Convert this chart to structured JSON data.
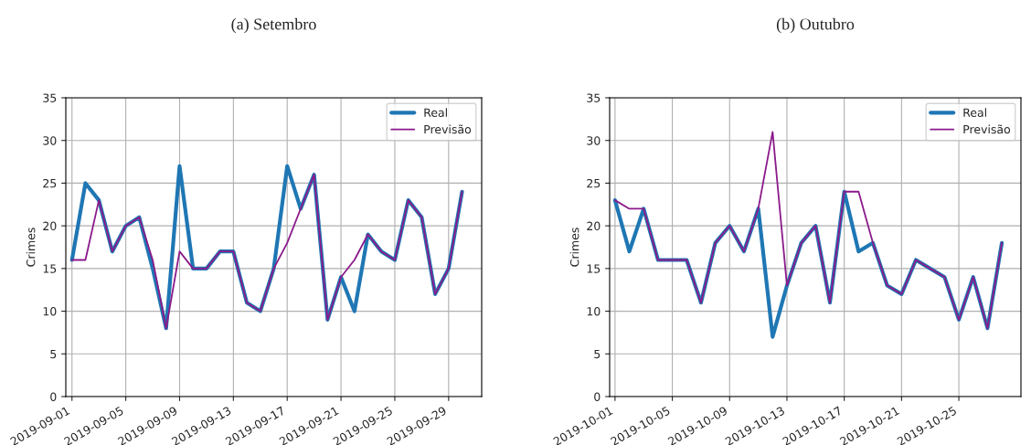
{
  "chart_data": [
    {
      "type": "line",
      "title": "(a) Setembro",
      "ylabel": "Crimes",
      "x": [
        "2019-09-01",
        "2019-09-02",
        "2019-09-03",
        "2019-09-04",
        "2019-09-05",
        "2019-09-06",
        "2019-09-07",
        "2019-09-08",
        "2019-09-09",
        "2019-09-10",
        "2019-09-11",
        "2019-09-12",
        "2019-09-13",
        "2019-09-14",
        "2019-09-15",
        "2019-09-16",
        "2019-09-17",
        "2019-09-18",
        "2019-09-19",
        "2019-09-20",
        "2019-09-21",
        "2019-09-22",
        "2019-09-23",
        "2019-09-24",
        "2019-09-25",
        "2019-09-26",
        "2019-09-27",
        "2019-09-28",
        "2019-09-29",
        "2019-09-30"
      ],
      "series": [
        {
          "name": "Real",
          "color": "#1f77b4",
          "values": [
            16,
            25,
            23,
            17,
            20,
            21,
            15,
            8,
            27,
            15,
            15,
            17,
            17,
            11,
            10,
            15,
            27,
            22,
            26,
            9,
            14,
            10,
            19,
            17,
            16,
            23,
            21,
            12,
            15,
            24
          ]
        },
        {
          "name": "Previsão",
          "color": "#8b1a8b",
          "values": [
            16,
            16,
            23,
            17,
            20,
            21,
            16,
            8,
            17,
            15,
            15,
            17,
            17,
            11,
            10,
            15,
            18,
            22,
            26,
            9,
            14,
            16,
            19,
            17,
            16,
            23,
            21,
            12,
            15,
            24
          ]
        }
      ],
      "xlim": [
        "2019-08-31T13:00",
        "2019-10-01T11:00"
      ],
      "xticks": [
        "2019-09-01",
        "2019-09-05",
        "2019-09-09",
        "2019-09-13",
        "2019-09-17",
        "2019-09-21",
        "2019-09-25",
        "2019-09-29"
      ],
      "ylim": [
        0,
        35
      ],
      "yticks": [
        0,
        5,
        10,
        15,
        20,
        25,
        30,
        35
      ],
      "grid": true,
      "legend": "top right",
      "line_style": "solid",
      "marker": "none"
    },
    {
      "type": "line",
      "title": "(b) Outubro",
      "ylabel": "Crimes",
      "x": [
        "2019-10-01",
        "2019-10-02",
        "2019-10-03",
        "2019-10-04",
        "2019-10-05",
        "2019-10-06",
        "2019-10-07",
        "2019-10-08",
        "2019-10-09",
        "2019-10-10",
        "2019-10-11",
        "2019-10-12",
        "2019-10-13",
        "2019-10-14",
        "2019-10-15",
        "2019-10-16",
        "2019-10-17",
        "2019-10-18",
        "2019-10-19",
        "2019-10-20",
        "2019-10-21",
        "2019-10-22",
        "2019-10-23",
        "2019-10-24",
        "2019-10-25",
        "2019-10-26",
        "2019-10-27",
        "2019-10-28"
      ],
      "series": [
        {
          "name": "Real",
          "color": "#1f77b4",
          "values": [
            23,
            17,
            22,
            16,
            16,
            16,
            11,
            18,
            20,
            17,
            22,
            7,
            13,
            18,
            20,
            11,
            24,
            17,
            18,
            13,
            12,
            16,
            15,
            14,
            9,
            14,
            8,
            18
          ]
        },
        {
          "name": "Previsão",
          "color": "#8b1a8b",
          "values": [
            23,
            22,
            22,
            16,
            16,
            16,
            11,
            18,
            20,
            17,
            22,
            31,
            13,
            18,
            20,
            11,
            24,
            24,
            18,
            13,
            12,
            16,
            15,
            14,
            9,
            14,
            8,
            18
          ]
        }
      ],
      "xlim": [
        "2019-09-30T15:00",
        "2019-10-29T08:00"
      ],
      "xticks": [
        "2019-10-01",
        "2019-10-05",
        "2019-10-09",
        "2019-10-13",
        "2019-10-17",
        "2019-10-21",
        "2019-10-25"
      ],
      "ylim": [
        0,
        35
      ],
      "yticks": [
        0,
        5,
        10,
        15,
        20,
        25,
        30,
        35
      ],
      "grid": true,
      "legend": "top right",
      "line_style": "solid",
      "marker": "none"
    }
  ]
}
